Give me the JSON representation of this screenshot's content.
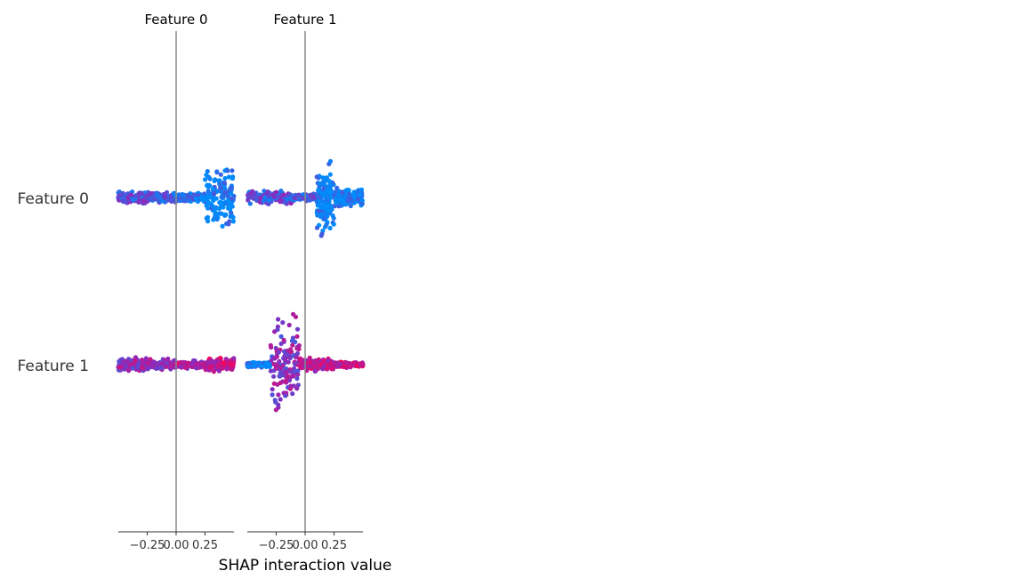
{
  "chart_data": {
    "type": "scatter",
    "subtype": "shap-interaction-beeswarm",
    "xlabel": "SHAP interaction value",
    "row_labels": [
      "Feature 0",
      "Feature 1"
    ],
    "panel_titles": [
      "Feature 0",
      "Feature 1"
    ],
    "xticks": [
      -0.25,
      0.0,
      0.25
    ],
    "xtick_labels": [
      "−0.25",
      "0.00",
      "0.25"
    ],
    "xlim": [
      -0.5,
      0.5
    ],
    "zero_line": true,
    "colormap": {
      "low": "#008bfb",
      "mid": "#8a2bbf",
      "high": "#ff0052"
    },
    "line_color": "#888888",
    "cells": [
      {
        "row": "Feature 0",
        "panel": "Feature 0",
        "segments": [
          {
            "from": -0.5,
            "to": -0.25,
            "spread": 0.12,
            "color_value": 0.3
          },
          {
            "from": -0.25,
            "to": 0.0,
            "spread": 0.1,
            "color_value": 0.2
          },
          {
            "from": 0.0,
            "to": 0.25,
            "spread": 0.09,
            "color_value": 0.1
          },
          {
            "from": 0.25,
            "to": 0.5,
            "spread": 0.7,
            "color_value": 0.02
          }
        ]
      },
      {
        "row": "Feature 0",
        "panel": "Feature 1",
        "segments": [
          {
            "from": -0.5,
            "to": -0.1,
            "spread": 0.14,
            "color_value": 0.3
          },
          {
            "from": -0.1,
            "to": 0.1,
            "spread": 0.07,
            "color_value": 0.2
          },
          {
            "from": 0.1,
            "to": 0.25,
            "spread": 0.7,
            "color_value": 0.02
          },
          {
            "from": 0.25,
            "to": 0.5,
            "spread": 0.18,
            "color_value": 0.05
          }
        ]
      },
      {
        "row": "Feature 1",
        "panel": "Feature 0",
        "segments": [
          {
            "from": -0.5,
            "to": -0.25,
            "spread": 0.16,
            "color_value": 0.55
          },
          {
            "from": -0.25,
            "to": 0.0,
            "spread": 0.11,
            "color_value": 0.55
          },
          {
            "from": 0.0,
            "to": 0.25,
            "spread": 0.08,
            "color_value": 0.65
          },
          {
            "from": 0.25,
            "to": 0.5,
            "spread": 0.14,
            "color_value": 0.75
          }
        ]
      },
      {
        "row": "Feature 1",
        "panel": "Feature 1",
        "segments": [
          {
            "from": -0.5,
            "to": -0.3,
            "spread": 0.05,
            "color_value": 0.05
          },
          {
            "from": -0.3,
            "to": -0.05,
            "spread": 0.9,
            "color_value": 0.5
          },
          {
            "from": -0.05,
            "to": 0.25,
            "spread": 0.14,
            "color_value": 0.7
          },
          {
            "from": 0.25,
            "to": 0.5,
            "spread": 0.06,
            "color_value": 0.8
          }
        ]
      }
    ]
  }
}
